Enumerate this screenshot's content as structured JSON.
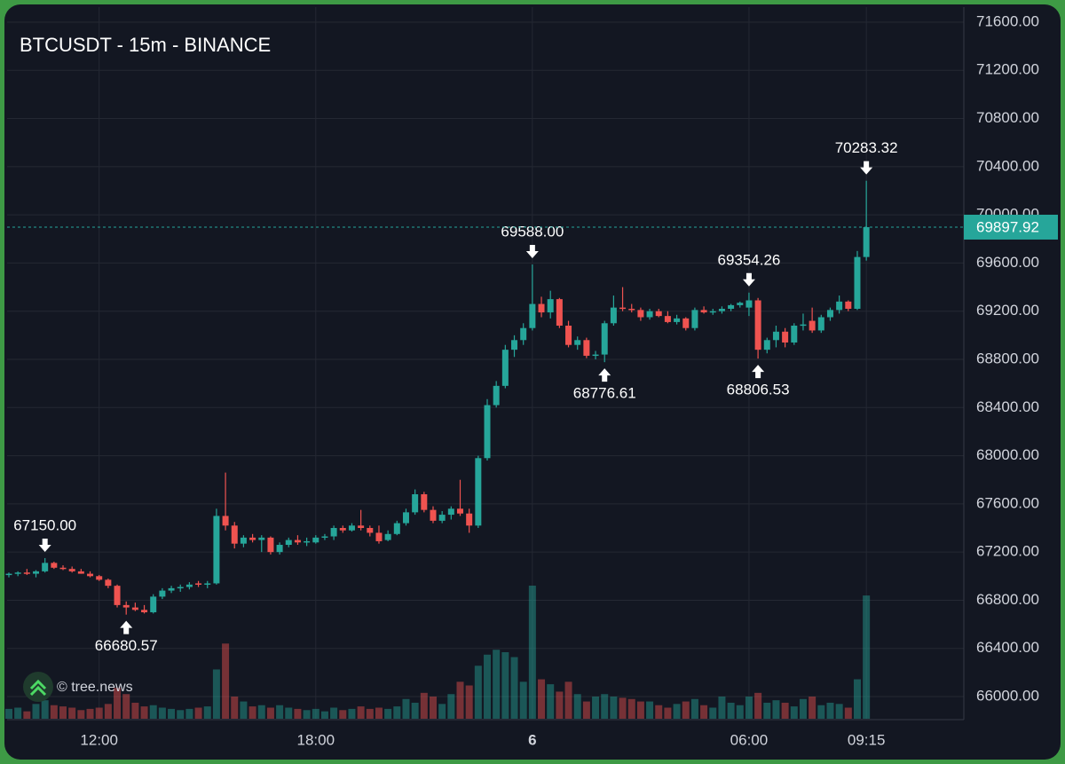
{
  "chart_data": {
    "type": "candlestick",
    "title": "BTCUSDT - 15m - BINANCE",
    "watermark": "© tree.news",
    "categories": [
      null,
      null,
      null,
      null,
      null,
      null,
      null,
      null,
      null,
      null,
      "12:00",
      null,
      null,
      null,
      null,
      null,
      null,
      null,
      null,
      null,
      null,
      null,
      null,
      null,
      null,
      null,
      null,
      null,
      null,
      null,
      null,
      null,
      null,
      null,
      "18:00",
      null,
      null,
      null,
      null,
      null,
      null,
      null,
      null,
      null,
      null,
      null,
      null,
      null,
      null,
      null,
      null,
      null,
      null,
      null,
      null,
      null,
      null,
      null,
      "6",
      null,
      null,
      null,
      null,
      null,
      null,
      null,
      null,
      null,
      null,
      null,
      null,
      null,
      null,
      null,
      null,
      null,
      null,
      null,
      null,
      null,
      null,
      null,
      "06:00",
      null,
      null,
      null,
      null,
      null,
      null,
      null,
      null,
      null,
      null,
      null,
      null,
      "09:15"
    ],
    "open": [
      67010,
      67020,
      67030,
      67020,
      67040,
      67110,
      67070,
      67060,
      67040,
      67020,
      67000,
      66970,
      66920,
      66760,
      66740,
      66720,
      66700,
      66830,
      66880,
      66900,
      66910,
      66940,
      66930,
      66940,
      67500,
      67420,
      67270,
      67320,
      67300,
      67320,
      67200,
      67260,
      67300,
      67280,
      67280,
      67320,
      67330,
      67400,
      67380,
      67420,
      67400,
      67360,
      67300,
      67350,
      67440,
      67530,
      67680,
      67550,
      67460,
      67510,
      67560,
      67520,
      67420,
      67980,
      68420,
      68580,
      68880,
      68960,
      69060,
      69260,
      69190,
      69300,
      69080,
      68920,
      68960,
      68830,
      68840,
      69100,
      69230,
      69220,
      69210,
      69150,
      69200,
      69160,
      69110,
      69140,
      69060,
      69210,
      69190,
      69200,
      69220,
      69250,
      69230,
      69290,
      68880,
      68960,
      69030,
      68940,
      69080,
      69120,
      69040,
      69150,
      69210,
      69280,
      69220,
      69650
    ],
    "high": [
      67030,
      67040,
      67060,
      67050,
      67150,
      67120,
      67090,
      67080,
      67060,
      67040,
      67010,
      66980,
      66930,
      66790,
      66780,
      66760,
      66850,
      66900,
      66920,
      66930,
      66950,
      66960,
      66960,
      67560,
      67860,
      67450,
      67340,
      67350,
      67340,
      67330,
      67280,
      67320,
      67340,
      67320,
      67340,
      67350,
      67420,
      67420,
      67440,
      67550,
      67420,
      67420,
      67380,
      67460,
      67560,
      67720,
      67700,
      67580,
      67540,
      67580,
      67800,
      67560,
      68000,
      68470,
      68620,
      68920,
      69000,
      69100,
      69588,
      69320,
      69370,
      69310,
      69120,
      68990,
      68980,
      68870,
      69120,
      69330,
      69400,
      69260,
      69230,
      69220,
      69220,
      69200,
      69170,
      69150,
      69230,
      69240,
      69220,
      69240,
      69260,
      69280,
      69354.26,
      69310,
      68980,
      69080,
      69060,
      69100,
      69180,
      69230,
      69170,
      69230,
      69330,
      69290,
      69700,
      70283.32
    ],
    "low": [
      66990,
      67000,
      67010,
      66990,
      67030,
      67060,
      67050,
      67030,
      67020,
      66990,
      66960,
      66900,
      66740,
      66680.57,
      66710,
      66690,
      66690,
      66810,
      66860,
      66870,
      66890,
      66910,
      66900,
      66930,
      67380,
      67230,
      67240,
      67280,
      67200,
      67180,
      67180,
      67240,
      67260,
      67250,
      67270,
      67300,
      67300,
      67360,
      67370,
      67380,
      67330,
      67270,
      67290,
      67340,
      67420,
      67510,
      67530,
      67440,
      67440,
      67470,
      67500,
      67360,
      67400,
      67960,
      68400,
      68560,
      68820,
      68920,
      69040,
      69150,
      69140,
      69060,
      68900,
      68880,
      68810,
      68800,
      68776.61,
      69080,
      69200,
      69190,
      69120,
      69130,
      69150,
      69100,
      69090,
      69040,
      69040,
      69180,
      69170,
      69180,
      69200,
      69230,
      69160,
      68806.53,
      68850,
      68900,
      68900,
      68920,
      69040,
      69020,
      69020,
      69120,
      69180,
      69200,
      69210,
      69620
    ],
    "close": [
      67020,
      67030,
      67020,
      67040,
      67110,
      67070,
      67060,
      67040,
      67020,
      67000,
      66970,
      66920,
      66760,
      66740,
      66720,
      66700,
      66830,
      66880,
      66900,
      66910,
      66930,
      66930,
      66940,
      67500,
      67420,
      67270,
      67320,
      67300,
      67320,
      67200,
      67260,
      67300,
      67280,
      67290,
      67320,
      67330,
      67400,
      67380,
      67420,
      67400,
      67360,
      67290,
      67350,
      67440,
      67530,
      67680,
      67550,
      67460,
      67510,
      67560,
      67520,
      67420,
      67980,
      68420,
      68580,
      68880,
      68960,
      69060,
      69260,
      69190,
      69300,
      69080,
      68920,
      68960,
      68830,
      68840,
      69100,
      69230,
      69220,
      69210,
      69150,
      69200,
      69160,
      69110,
      69140,
      69060,
      69210,
      69190,
      69200,
      69220,
      69250,
      69270,
      69290,
      68880,
      68960,
      69030,
      68940,
      69080,
      69090,
      69040,
      69150,
      69210,
      69280,
      69220,
      69650,
      69897.92
    ],
    "volume": [
      80,
      90,
      60,
      120,
      150,
      110,
      100,
      90,
      70,
      80,
      90,
      120,
      250,
      200,
      130,
      100,
      110,
      90,
      80,
      70,
      80,
      90,
      100,
      400,
      610,
      180,
      140,
      100,
      110,
      90,
      110,
      90,
      80,
      70,
      80,
      60,
      90,
      70,
      80,
      100,
      80,
      90,
      80,
      100,
      160,
      130,
      210,
      180,
      120,
      200,
      300,
      270,
      430,
      520,
      560,
      540,
      500,
      300,
      1080,
      320,
      280,
      220,
      300,
      200,
      140,
      180,
      200,
      180,
      170,
      160,
      140,
      140,
      110,
      90,
      120,
      140,
      160,
      110,
      90,
      180,
      130,
      110,
      180,
      210,
      130,
      150,
      130,
      100,
      160,
      180,
      110,
      130,
      120,
      90,
      320,
      1000
    ],
    "up_color": "#26a69a",
    "down_color": "#ef5350",
    "ylim": [
      65816,
      71725
    ],
    "yticks": [
      {
        "value": 66000,
        "label": "66000.00"
      },
      {
        "value": 66400,
        "label": "66400.00"
      },
      {
        "value": 66800,
        "label": "66800.00"
      },
      {
        "value": 67200,
        "label": "67200.00"
      },
      {
        "value": 67600,
        "label": "67600.00"
      },
      {
        "value": 68000,
        "label": "68000.00"
      },
      {
        "value": 68400,
        "label": "68400.00"
      },
      {
        "value": 68800,
        "label": "68800.00"
      },
      {
        "value": 69200,
        "label": "69200.00"
      },
      {
        "value": 69600,
        "label": "69600.00"
      },
      {
        "value": 70000,
        "label": "70000.00"
      },
      {
        "value": 70400,
        "label": "70400.00"
      },
      {
        "value": 70800,
        "label": "70800.00"
      },
      {
        "value": 71200,
        "label": "71200.00"
      },
      {
        "value": 71600,
        "label": "71600.00"
      }
    ],
    "last_price": 69897.92,
    "annotations": [
      {
        "value": 67150,
        "label": "67150.00"
      },
      66680.57,
      {
        "value": 69588,
        "label": "69588.00"
      },
      68776.61,
      69354.26,
      68806.53,
      70283.32
    ],
    "grid": true
  }
}
